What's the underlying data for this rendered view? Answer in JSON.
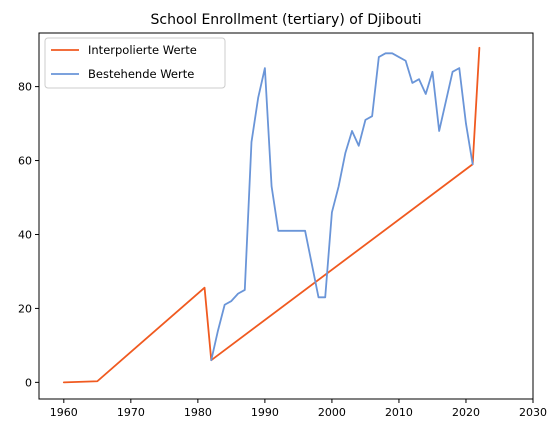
{
  "chart_data": {
    "type": "line",
    "title": "School Enrollment (tertiary) of Djibouti",
    "xlabel": "",
    "ylabel": "",
    "xlim": [
      1962.5,
      2030
    ],
    "ylim": [
      -4.5,
      94.5
    ],
    "x_ticks": [
      1960,
      1970,
      1980,
      1990,
      2000,
      2010,
      2020,
      2030
    ],
    "y_ticks": [
      0,
      20,
      40,
      60,
      80
    ],
    "grid": false,
    "legend_position": "top-left",
    "series": [
      {
        "name": "Interpolierte Werte",
        "color": "#f05a20",
        "x": [
          1960,
          1965,
          1981,
          1982,
          2021,
          2022
        ],
        "y": [
          0,
          0.3,
          25.6,
          6,
          59,
          90.5
        ]
      },
      {
        "name": "Bestehende Werte",
        "color": "#6a95d8",
        "x": [
          1982,
          1983,
          1984,
          1985,
          1986,
          1987,
          1988,
          1989,
          1990,
          1991,
          1992,
          1993,
          1994,
          1995,
          1996,
          1997,
          1998,
          1999,
          2000,
          2001,
          2002,
          2003,
          2004,
          2005,
          2006,
          2007,
          2008,
          2009,
          2010,
          2011,
          2012,
          2013,
          2014,
          2015,
          2016,
          2017,
          2018,
          2019,
          2020,
          2021
        ],
        "y": [
          6,
          14,
          21,
          22,
          24,
          25,
          65,
          77,
          85,
          53,
          41,
          41,
          41,
          41,
          41,
          32,
          23,
          23,
          46,
          53,
          62,
          68,
          64,
          71,
          72,
          88,
          89,
          89,
          88,
          87,
          81,
          82,
          78,
          84,
          68,
          76,
          84,
          85,
          70,
          59
        ]
      }
    ]
  }
}
